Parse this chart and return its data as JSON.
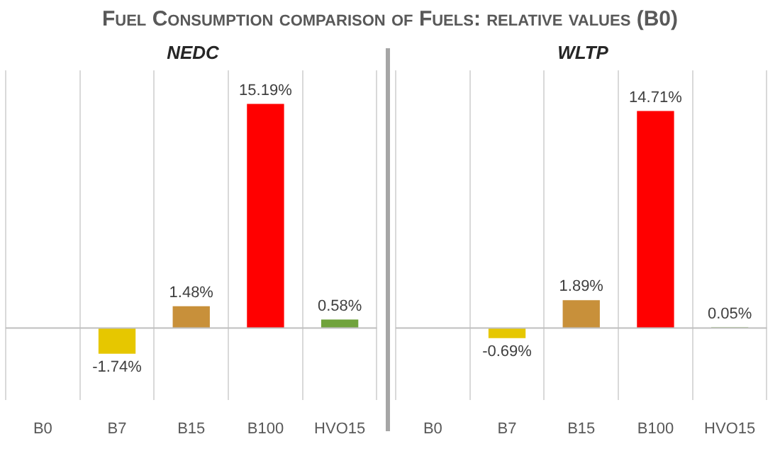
{
  "chart_data": [
    {
      "type": "bar",
      "title": "Fuel Consumption comparison of Fuels: relative values (B0)",
      "subtitle": "NEDC",
      "categories": [
        "B0",
        "B7",
        "B15",
        "B100",
        "HVO15"
      ],
      "values": [
        0,
        -1.74,
        1.48,
        15.19,
        0.58
      ],
      "colors": [
        "#70a33c",
        "#e6c700",
        "#c8903a",
        "#ff0000",
        "#70a33c"
      ],
      "value_labels": [
        null,
        "-1.74%",
        "1.48%",
        "15.19%",
        "0.58%"
      ],
      "tick_labels": "x",
      "grid": "x",
      "legend": false
    },
    {
      "type": "bar",
      "subtitle": "WLTP",
      "categories": [
        "B0",
        "B7",
        "B15",
        "B100",
        "HVO15"
      ],
      "values": [
        0,
        -0.69,
        1.89,
        14.71,
        0.05
      ],
      "colors": [
        "#70a33c",
        "#e6c700",
        "#c8903a",
        "#ff0000",
        "#70a33c"
      ],
      "value_labels": [
        null,
        "-0.69%",
        "1.89%",
        "14.71%",
        "0.05%"
      ],
      "tick_labels": "x",
      "grid": "x",
      "legend": false
    }
  ]
}
